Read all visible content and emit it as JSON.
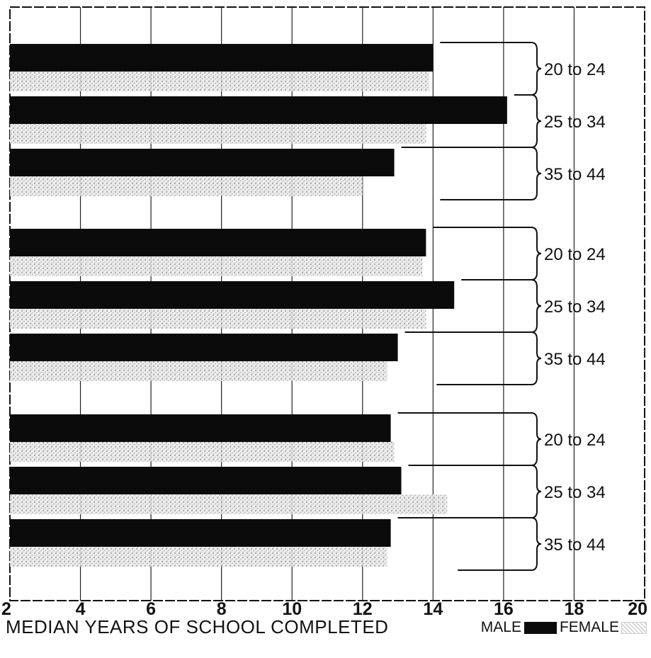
{
  "chart_data": {
    "type": "bar",
    "orientation": "horizontal",
    "title": "",
    "xlabel": "MEDIAN YEARS OF SCHOOL COMPLETED",
    "ylabel": "",
    "xlim": [
      2,
      20
    ],
    "x_ticks": [
      "2",
      "4",
      "6",
      "8",
      "10",
      "12",
      "14",
      "16",
      "18",
      "20"
    ],
    "grid": true,
    "legend": {
      "placement": "bottom-right",
      "entries": [
        "MALE",
        "FEMALE"
      ]
    },
    "colors": {
      "MALE": "#0b0b0b",
      "FEMALE": "#cfcfcf"
    },
    "groups": [
      {
        "categories": [
          "20 to 24",
          "25 to 34",
          "35 to 44"
        ],
        "male": [
          14.0,
          16.1,
          12.9
        ],
        "female": [
          13.9,
          13.8,
          12.0
        ]
      },
      {
        "categories": [
          "20 to 24",
          "25 to 34",
          "35 to 44"
        ],
        "male": [
          13.8,
          14.6,
          13.0
        ],
        "female": [
          13.7,
          13.8,
          12.7
        ]
      },
      {
        "categories": [
          "20 to 24",
          "25 to 34",
          "35 to 44"
        ],
        "male": [
          12.8,
          13.1,
          12.8
        ],
        "female": [
          12.9,
          14.4,
          12.7
        ]
      }
    ]
  }
}
